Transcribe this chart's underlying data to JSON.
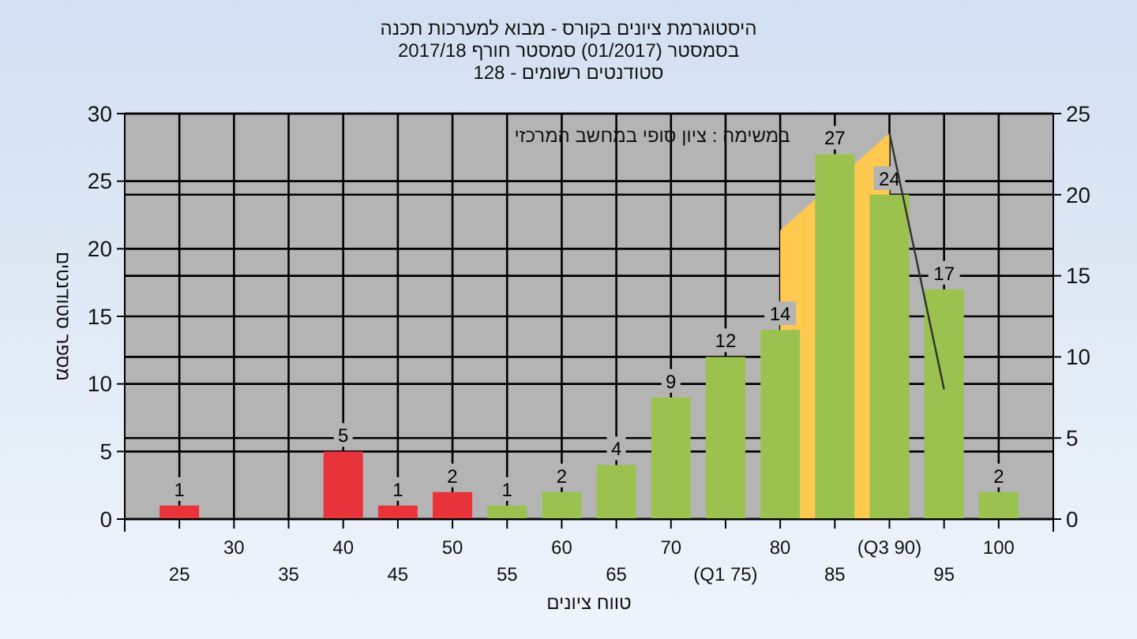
{
  "chart_data": {
    "type": "bar",
    "title": "היסטוגרמת ציונים בקורס - מבוא למערכות תכנה",
    "subtitle": "בסמסטר  (01/2017)  סמסטר חורף 2017/18\nסטודנטים רשומים - 128",
    "xlabel": "טווח ציונים",
    "ylabel": "מספר סטודנטים",
    "annotations": [
      "במשימה : ציון סופי במחשב המרכזי"
    ],
    "categories": [
      "25",
      "30",
      "35",
      "40",
      "45",
      "50",
      "55",
      "60",
      "65",
      "70",
      "(Q1 75)",
      "80",
      "85",
      "(Q3 90)",
      "95",
      "100"
    ],
    "series": [
      {
        "type": "area",
        "axis": "y2",
        "color": "#ffc94f",
        "values": [
          null,
          null,
          null,
          null,
          null,
          null,
          null,
          null,
          null,
          null,
          null,
          17.8,
          null,
          23.8,
          null,
          null
        ]
      },
      {
        "colors": [
          "#e8333a",
          "#e8333a",
          "#e8333a",
          "#e8333a",
          "#e8333a",
          "#e8333a",
          "#9bc24f",
          "#9bc24f",
          "#9bc24f",
          "#9bc24f",
          "#9bc24f",
          "#9bc24f",
          "#9bc24f",
          "#9bc24f",
          "#9bc24f",
          "#9bc24f"
        ],
        "values": [
          1,
          0,
          0,
          5,
          1,
          2,
          1,
          2,
          4,
          9,
          12,
          14,
          27,
          24,
          17,
          2
        ],
        "value_labels": [
          "1",
          null,
          null,
          "5",
          "1",
          "2",
          "1",
          "2",
          "4",
          "9",
          "12",
          "14",
          "27",
          "24",
          "17",
          "2"
        ]
      },
      {
        "type": "line",
        "axis": "y2",
        "color": "#303030",
        "values": [
          null,
          null,
          null,
          null,
          null,
          null,
          null,
          null,
          null,
          null,
          null,
          null,
          null,
          23.8,
          8,
          null
        ]
      }
    ],
    "ylim": [
      0,
      30
    ],
    "yticks": [
      0,
      5,
      10,
      15,
      20,
      25,
      30
    ],
    "y2lim": [
      0,
      25
    ],
    "y2ticks": [
      0,
      5,
      10,
      15,
      20,
      25
    ],
    "grid": true
  }
}
